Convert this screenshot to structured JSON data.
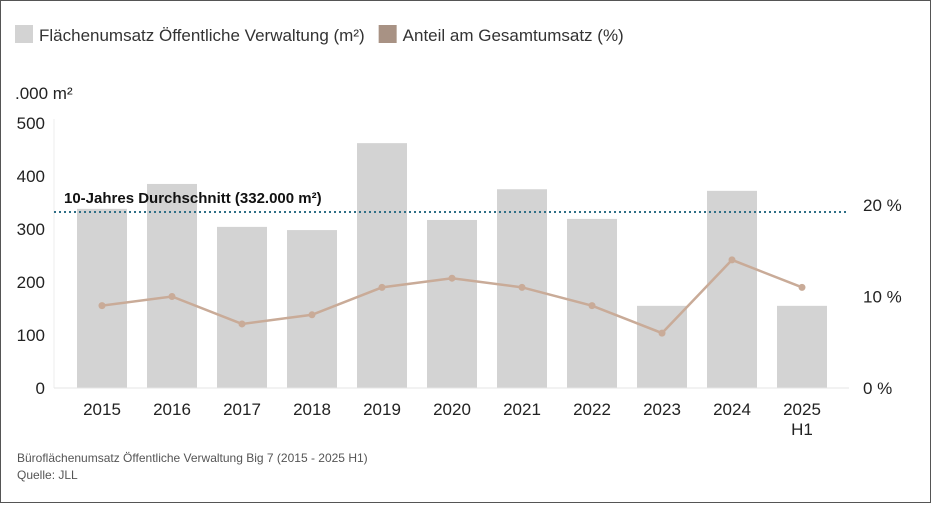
{
  "chart_data": {
    "type": "bar",
    "categories": [
      "2015",
      "2016",
      "2017",
      "2018",
      "2019",
      "2020",
      "2021",
      "2022",
      "2023",
      "2024",
      "2025\nH1"
    ],
    "series": [
      {
        "name": "Flächenumsatz Öffentliche Verwaltung (m²)",
        "type": "bar",
        "axis": "left",
        "values": [
          338,
          385,
          304,
          298,
          462,
          317,
          375,
          319,
          155,
          372,
          155
        ],
        "color": "#d3d3d3"
      },
      {
        "name": "Anteil am Gesamtumsatz (%)",
        "type": "line",
        "axis": "right",
        "values": [
          9,
          10,
          7,
          8,
          11,
          12,
          11,
          9,
          6,
          14,
          11
        ],
        "color": "#c9ab98",
        "legend_color": "#a89284"
      }
    ],
    "ylabel": ".000 m²",
    "ylim": [
      0,
      500
    ],
    "yticks": [
      "0",
      "100",
      "200",
      "300",
      "400",
      "500"
    ],
    "y2lim": [
      0,
      20
    ],
    "y2ticks": [
      "0 %",
      "10 %",
      "20 %"
    ],
    "reference_line": {
      "label": "10-Jahres Durchschnitt (332.000 m²)",
      "value": 332,
      "color": "#2e6e86"
    },
    "legend_position": "top-left",
    "grid": false
  },
  "footer": {
    "caption": "Büroflächenumsatz Öffentliche Verwaltung Big 7 (2015 - 2025 H1)",
    "source": "Quelle: JLL"
  }
}
